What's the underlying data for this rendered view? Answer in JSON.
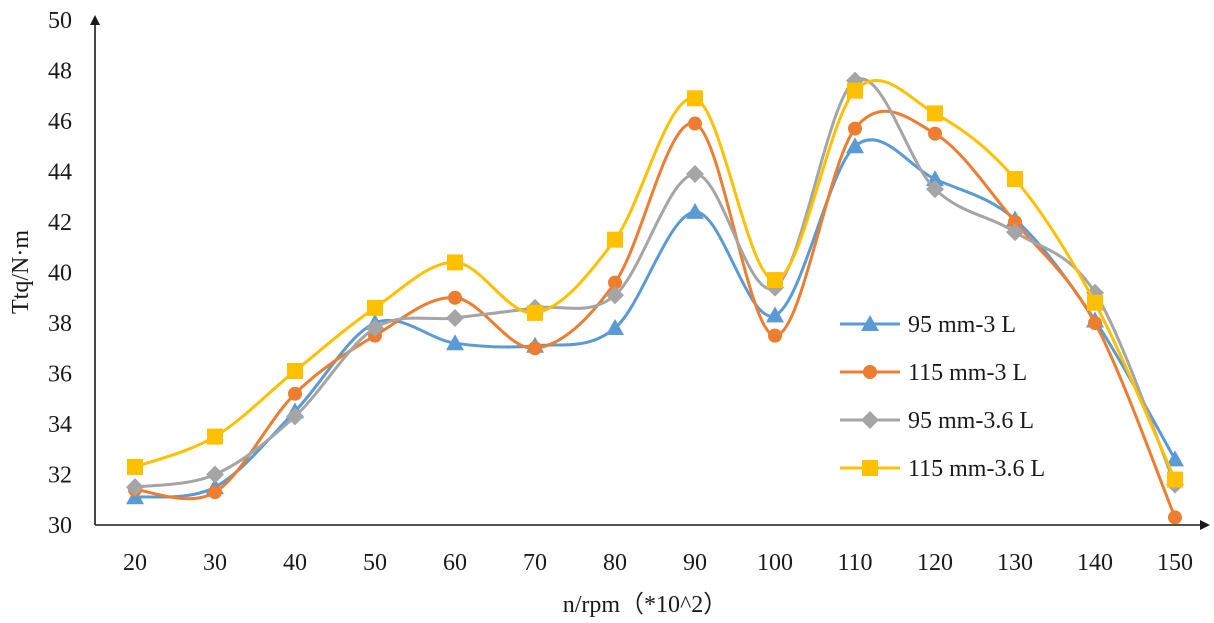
{
  "chart_data": {
    "type": "line",
    "smooth": true,
    "title": "",
    "xlabel": "n/rpm（*10^2）",
    "ylabel": "Ttq/N·m",
    "categories": [
      "20",
      "30",
      "40",
      "50",
      "60",
      "70",
      "80",
      "90",
      "100",
      "110",
      "120",
      "130",
      "140",
      "150"
    ],
    "ylim": [
      30,
      50
    ],
    "yticks": [
      "30",
      "32",
      "34",
      "36",
      "38",
      "40",
      "42",
      "44",
      "46",
      "48",
      "50"
    ],
    "grid": false,
    "legend_position": "right",
    "series": [
      {
        "name": "95 mm-3 L",
        "marker": "triangle",
        "color": "#5b9bd5",
        "values": [
          31.1,
          31.5,
          34.5,
          38.0,
          37.2,
          37.1,
          37.8,
          42.4,
          38.3,
          45.0,
          43.7,
          42.1,
          38.1,
          32.6
        ]
      },
      {
        "name": "115 mm-3 L",
        "marker": "circle",
        "color": "#ed7d31",
        "values": [
          31.4,
          31.3,
          35.2,
          37.5,
          39.0,
          37.0,
          39.6,
          45.9,
          37.5,
          45.7,
          45.5,
          42.0,
          38.0,
          30.3
        ]
      },
      {
        "name": "95 mm-3.6 L",
        "marker": "diamond",
        "color": "#a5a5a5",
        "values": [
          31.5,
          32.0,
          34.3,
          37.8,
          38.2,
          38.6,
          39.1,
          43.9,
          39.4,
          47.6,
          43.3,
          41.6,
          39.2,
          31.6
        ]
      },
      {
        "name": "115 mm-3.6 L",
        "marker": "square",
        "color": "#ffc000",
        "values": [
          32.3,
          33.5,
          36.1,
          38.6,
          40.4,
          38.4,
          41.3,
          46.9,
          39.7,
          47.2,
          46.3,
          43.7,
          38.8,
          31.8
        ]
      }
    ]
  }
}
